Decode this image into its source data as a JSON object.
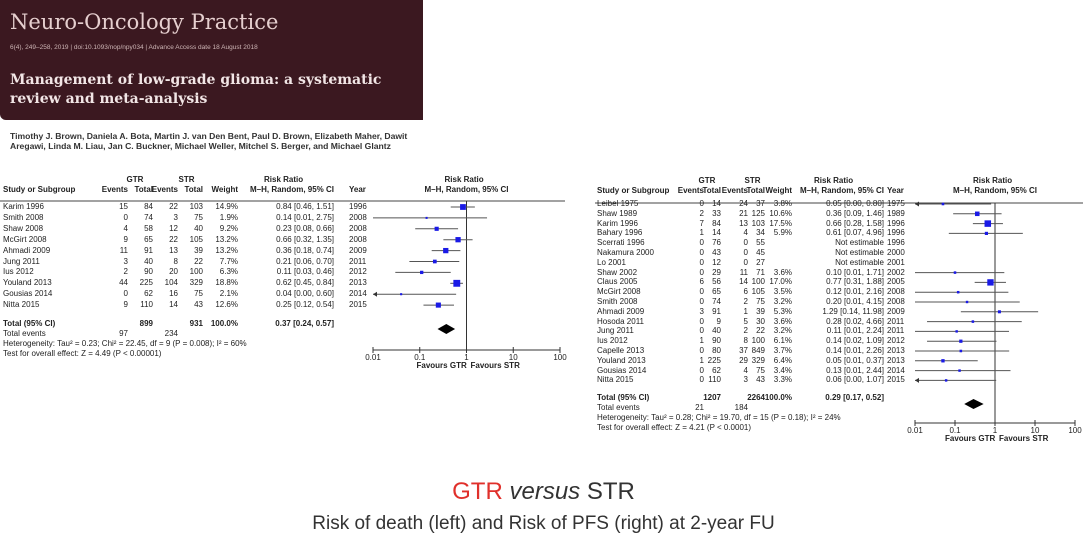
{
  "journal": {
    "name": "Neuro-Oncology Practice",
    "meta": "6(4), 249–258, 2019 | doi:10.1093/nop/npy034 | Advance Access date 18 August 2018",
    "article_title": "Management of low-grade glioma: a systematic review and meta-analysis",
    "authors": "Timothy J. Brown, Daniela A. Bota, Martin J. van Den Bent, Paul D. Brown, Elizabeth Maher, Dawit Aregawi, Linda M. Liau, Jan C. Buckner, Michael Weller, Mitchel S. Berger, and Michael Glantz",
    "banner_color": "#3b1820"
  },
  "caption": {
    "gtr": "GTR",
    "versus": "versus",
    "str": "STR",
    "subtitle": "Risk of death (left) and Risk of PFS (right) at 2-year FU",
    "gtr_color": "#e0302b"
  },
  "headers": {
    "group1": "GTR",
    "group2": "STR",
    "rr": "Risk Ratio",
    "study": "Study or Subgroup",
    "events": "Events",
    "total": "Total",
    "weight": "Weight",
    "method": "M–H, Random, 95% CI",
    "year": "Year",
    "not_estimable": "Not estimable",
    "favours_left": "Favours GTR",
    "favours_right": "Favours STR"
  },
  "chart_data": [
    {
      "type": "forest",
      "scale": "log",
      "xlim": [
        0.01,
        100
      ],
      "ticks": [
        "0.01",
        "0.1",
        "1",
        "10",
        "100"
      ],
      "marker_color": "#1a1ae6",
      "studies": [
        {
          "name": "Karim 1996",
          "ge": 15,
          "gt": 84,
          "se": 22,
          "st": 103,
          "weight": "14.9%",
          "rr": 0.84,
          "lo": 0.46,
          "hi": 1.51,
          "year": "1996"
        },
        {
          "name": "Smith 2008",
          "ge": 0,
          "gt": 74,
          "se": 3,
          "st": 75,
          "weight": "1.9%",
          "rr": 0.14,
          "lo": 0.01,
          "hi": 2.75,
          "year": "2008"
        },
        {
          "name": "Shaw 2008",
          "ge": 4,
          "gt": 58,
          "se": 12,
          "st": 40,
          "weight": "9.2%",
          "rr": 0.23,
          "lo": 0.08,
          "hi": 0.66,
          "year": "2008"
        },
        {
          "name": "McGirt 2008",
          "ge": 9,
          "gt": 65,
          "se": 22,
          "st": 105,
          "weight": "13.2%",
          "rr": 0.66,
          "lo": 0.32,
          "hi": 1.35,
          "year": "2008"
        },
        {
          "name": "Ahmadi 2009",
          "ge": 11,
          "gt": 91,
          "se": 13,
          "st": 39,
          "weight": "13.2%",
          "rr": 0.36,
          "lo": 0.18,
          "hi": 0.74,
          "year": "2009"
        },
        {
          "name": "Jung 2011",
          "ge": 3,
          "gt": 40,
          "se": 8,
          "st": 22,
          "weight": "7.7%",
          "rr": 0.21,
          "lo": 0.06,
          "hi": 0.7,
          "year": "2011"
        },
        {
          "name": "Ius 2012",
          "ge": 2,
          "gt": 90,
          "se": 20,
          "st": 100,
          "weight": "6.3%",
          "rr": 0.11,
          "lo": 0.03,
          "hi": 0.46,
          "year": "2012"
        },
        {
          "name": "Youland 2013",
          "ge": 44,
          "gt": 225,
          "se": 104,
          "st": 329,
          "weight": "18.8%",
          "rr": 0.62,
          "lo": 0.45,
          "hi": 0.84,
          "year": "2013"
        },
        {
          "name": "Gousias 2014",
          "ge": 0,
          "gt": 62,
          "se": 16,
          "st": 75,
          "weight": "2.1%",
          "rr": 0.04,
          "lo": 0.0,
          "hi": 0.6,
          "year": "2014"
        },
        {
          "name": "Nitta 2015",
          "ge": 9,
          "gt": 110,
          "se": 14,
          "st": 43,
          "weight": "12.6%",
          "rr": 0.25,
          "lo": 0.12,
          "hi": 0.54,
          "year": "2015"
        }
      ],
      "total": {
        "label": "Total (95% CI)",
        "gt": 899,
        "st": 931,
        "weight": "100.0%",
        "rr": 0.37,
        "lo": 0.24,
        "hi": 0.57
      },
      "total_events": {
        "label": "Total events",
        "g": 97,
        "s": 234
      },
      "heterogeneity": "Heterogeneity: Tau² = 0.23; Chi² = 22.45, df = 9 (P = 0.008); I² = 60%",
      "overall_effect": "Test for overall effect: Z = 4.49 (P < 0.00001)"
    },
    {
      "type": "forest",
      "scale": "log",
      "xlim": [
        0.01,
        100
      ],
      "ticks": [
        "0.01",
        "0.1",
        "1",
        "10",
        "100"
      ],
      "marker_color": "#1a1ae6",
      "studies": [
        {
          "name": "Leibel 1975",
          "ge": 0,
          "gt": 14,
          "se": 24,
          "st": 37,
          "weight": "3.8%",
          "rr": 0.05,
          "lo": 0.0,
          "hi": 0.8,
          "year": "1975"
        },
        {
          "name": "Shaw 1989",
          "ge": 2,
          "gt": 33,
          "se": 21,
          "st": 125,
          "weight": "10.6%",
          "rr": 0.36,
          "lo": 0.09,
          "hi": 1.46,
          "year": "1989"
        },
        {
          "name": "Karim 1996",
          "ge": 7,
          "gt": 84,
          "se": 13,
          "st": 103,
          "weight": "17.5%",
          "rr": 0.66,
          "lo": 0.28,
          "hi": 1.58,
          "year": "1996"
        },
        {
          "name": "Bahary 1996",
          "ge": 1,
          "gt": 14,
          "se": 4,
          "st": 34,
          "weight": "5.9%",
          "rr": 0.61,
          "lo": 0.07,
          "hi": 4.96,
          "year": "1996"
        },
        {
          "name": "Scerrati 1996",
          "ge": 0,
          "gt": 76,
          "se": 0,
          "st": 55,
          "weight": "",
          "rr": null,
          "lo": null,
          "hi": null,
          "year": "1996"
        },
        {
          "name": "Nakamura 2000",
          "ge": 0,
          "gt": 43,
          "se": 0,
          "st": 45,
          "weight": "",
          "rr": null,
          "lo": null,
          "hi": null,
          "year": "2000"
        },
        {
          "name": "Lo 2001",
          "ge": 0,
          "gt": 12,
          "se": 0,
          "st": 27,
          "weight": "",
          "rr": null,
          "lo": null,
          "hi": null,
          "year": "2001"
        },
        {
          "name": "Shaw 2002",
          "ge": 0,
          "gt": 29,
          "se": 11,
          "st": 71,
          "weight": "3.6%",
          "rr": 0.1,
          "lo": 0.01,
          "hi": 1.71,
          "year": "2002"
        },
        {
          "name": "Claus 2005",
          "ge": 6,
          "gt": 56,
          "se": 14,
          "st": 100,
          "weight": "17.0%",
          "rr": 0.77,
          "lo": 0.31,
          "hi": 1.88,
          "year": "2005"
        },
        {
          "name": "McGirt 2008",
          "ge": 0,
          "gt": 65,
          "se": 6,
          "st": 105,
          "weight": "3.5%",
          "rr": 0.12,
          "lo": 0.01,
          "hi": 2.16,
          "year": "2008"
        },
        {
          "name": "Smith 2008",
          "ge": 0,
          "gt": 74,
          "se": 2,
          "st": 75,
          "weight": "3.2%",
          "rr": 0.2,
          "lo": 0.01,
          "hi": 4.15,
          "year": "2008"
        },
        {
          "name": "Ahmadi 2009",
          "ge": 3,
          "gt": 91,
          "se": 1,
          "st": 39,
          "weight": "5.3%",
          "rr": 1.29,
          "lo": 0.14,
          "hi": 11.98,
          "year": "2009"
        },
        {
          "name": "Hosoda 2011",
          "ge": 0,
          "gt": 9,
          "se": 5,
          "st": 30,
          "weight": "3.6%",
          "rr": 0.28,
          "lo": 0.02,
          "hi": 4.66,
          "year": "2011"
        },
        {
          "name": "Jung 2011",
          "ge": 0,
          "gt": 40,
          "se": 2,
          "st": 22,
          "weight": "3.2%",
          "rr": 0.11,
          "lo": 0.01,
          "hi": 2.24,
          "year": "2011"
        },
        {
          "name": "Ius 2012",
          "ge": 1,
          "gt": 90,
          "se": 8,
          "st": 100,
          "weight": "6.1%",
          "rr": 0.14,
          "lo": 0.02,
          "hi": 1.09,
          "year": "2012"
        },
        {
          "name": "Capelle 2013",
          "ge": 0,
          "gt": 80,
          "se": 37,
          "st": 849,
          "weight": "3.7%",
          "rr": 0.14,
          "lo": 0.01,
          "hi": 2.26,
          "year": "2013"
        },
        {
          "name": "Youland 2013",
          "ge": 1,
          "gt": 225,
          "se": 29,
          "st": 329,
          "weight": "6.4%",
          "rr": 0.05,
          "lo": 0.01,
          "hi": 0.37,
          "year": "2013"
        },
        {
          "name": "Gousias 2014",
          "ge": 0,
          "gt": 62,
          "se": 4,
          "st": 75,
          "weight": "3.4%",
          "rr": 0.13,
          "lo": 0.01,
          "hi": 2.44,
          "year": "2014"
        },
        {
          "name": "Nitta 2015",
          "ge": 0,
          "gt": 110,
          "se": 3,
          "st": 43,
          "weight": "3.3%",
          "rr": 0.06,
          "lo": 0.0,
          "hi": 1.07,
          "year": "2015"
        }
      ],
      "total": {
        "label": "Total (95% CI)",
        "gt": 1207,
        "st": 2264,
        "weight": "100.0%",
        "rr": 0.29,
        "lo": 0.17,
        "hi": 0.52
      },
      "total_events": {
        "label": "Total events",
        "g": 21,
        "s": 184
      },
      "heterogeneity": "Heterogeneity: Tau² = 0.28; Chi² = 19.70, df = 15 (P = 0.18); I² = 24%",
      "overall_effect": "Test for overall effect: Z = 4.21 (P < 0.0001)"
    }
  ]
}
